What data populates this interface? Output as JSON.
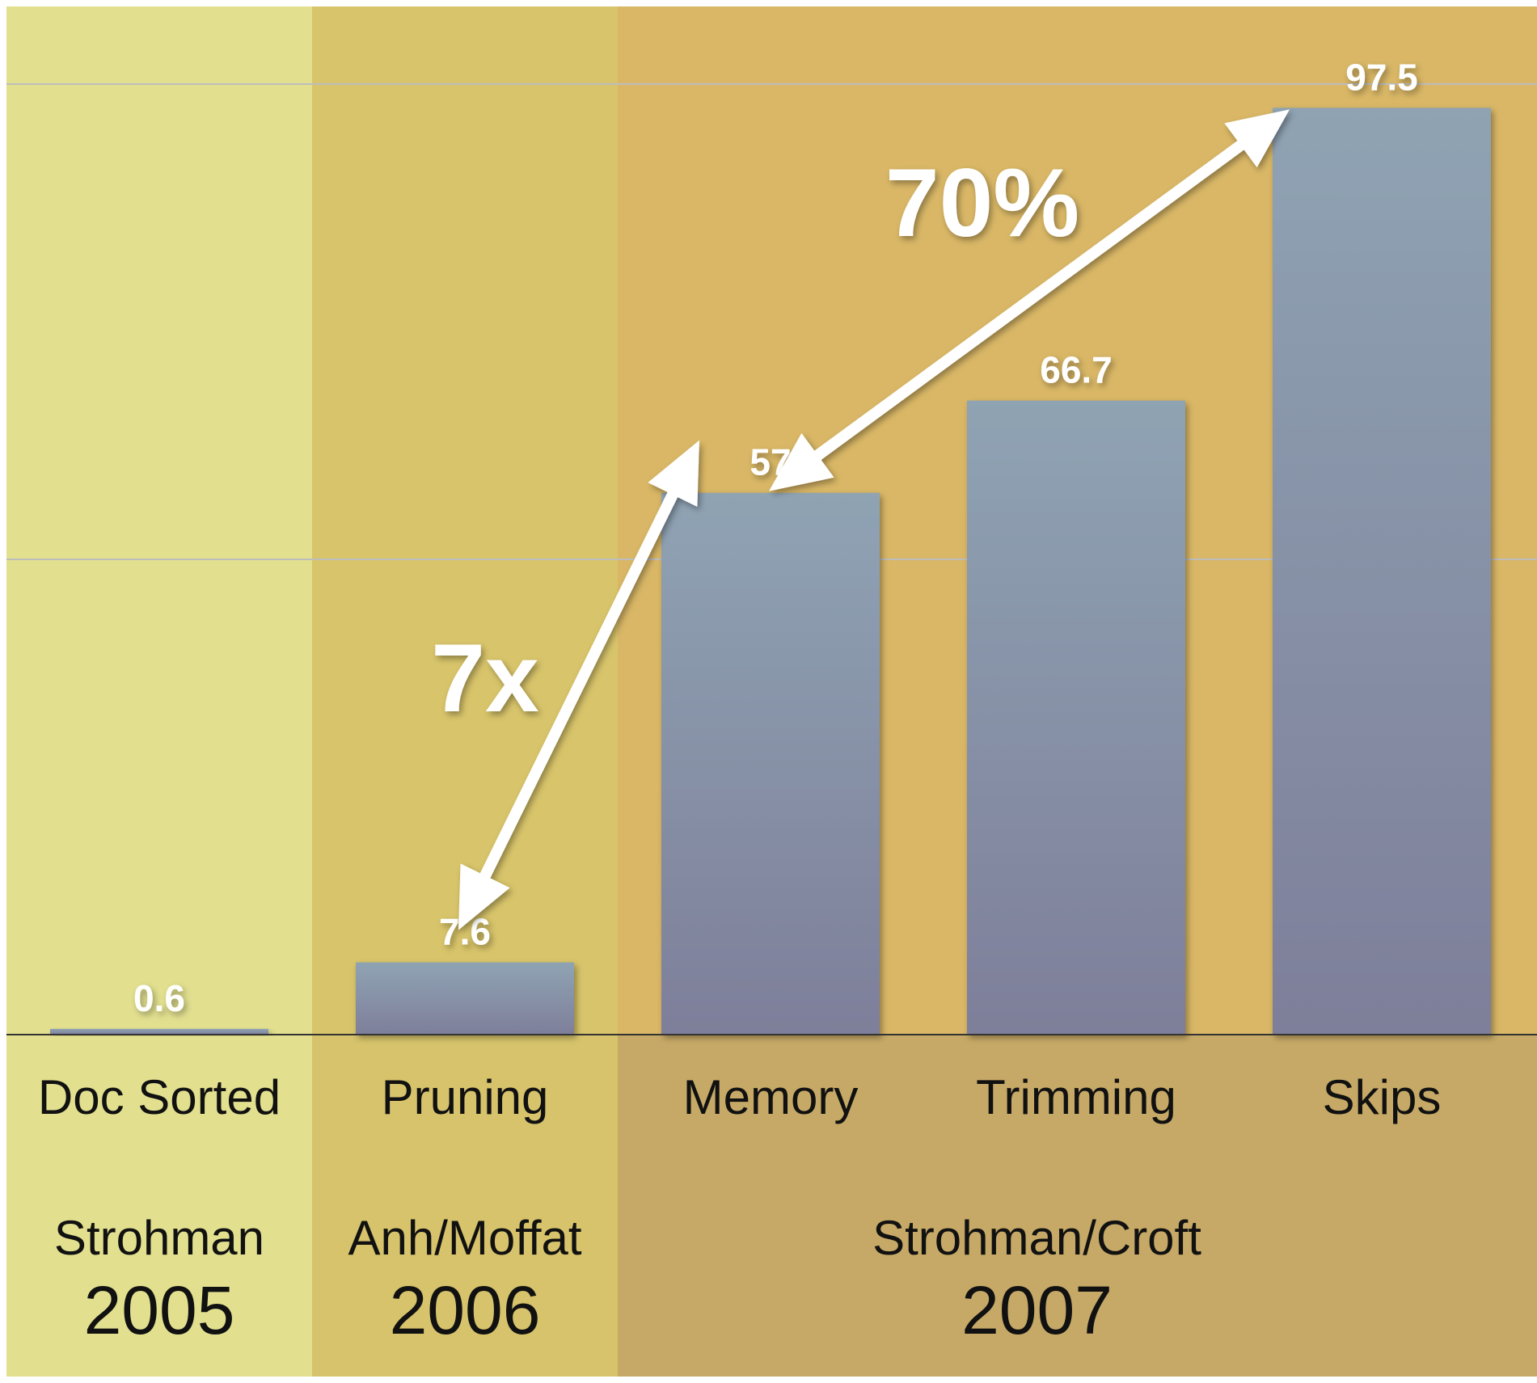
{
  "chart_data": {
    "type": "bar",
    "categories": [
      "Doc Sorted",
      "Pruning",
      "Memory",
      "Trimming",
      "Skips"
    ],
    "values": [
      0.6,
      7.6,
      57,
      66.7,
      97.5
    ],
    "value_labels": [
      "0.6",
      "7.6",
      "57",
      "66.7",
      "97.5"
    ],
    "ylim": [
      0,
      110
    ],
    "grid": "horizontal",
    "groups": [
      {
        "author": "Strohman",
        "year": "2005",
        "categories": [
          "Doc Sorted"
        ],
        "color": "#E2E08F"
      },
      {
        "author": "Anh/Moffat",
        "year": "2006",
        "categories": [
          "Pruning"
        ],
        "color": "#D8C46A"
      },
      {
        "author": "Strohman/Croft",
        "year": "2007",
        "categories": [
          "Memory",
          "Trimming",
          "Skips"
        ],
        "color": "#D9B766"
      }
    ],
    "annotations": [
      {
        "text": "7x",
        "from": "Pruning",
        "to": "Memory"
      },
      {
        "text": "70%",
        "from": "Memory",
        "to": "Skips"
      }
    ],
    "colors": {
      "bar_top": "#8FA3B3",
      "bar_bottom": "#7E7F9A",
      "axis": "#333333",
      "grid": "#BDBDBD",
      "arrow": "#FFFFFF"
    }
  }
}
